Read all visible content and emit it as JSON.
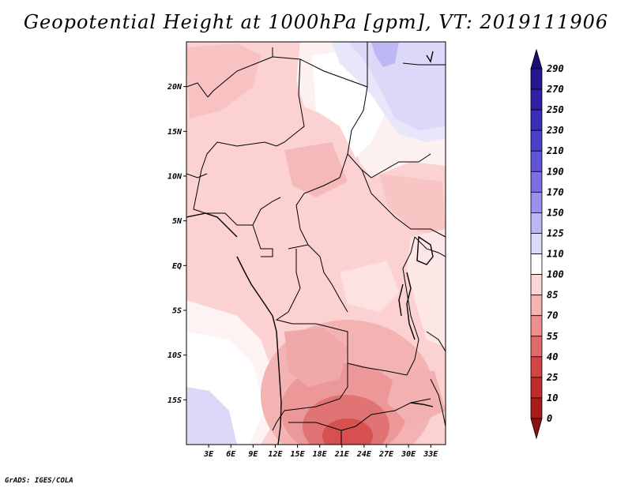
{
  "title": "Geopotential Height at 1000hPa [gpm], VT: 2019111906",
  "credit": "GrADS: IGES/COLA",
  "map": {
    "lat_ticks": [
      "20N",
      "15N",
      "10N",
      "5N",
      "EQ",
      "5S",
      "10S",
      "15S"
    ],
    "lon_ticks": [
      "3E",
      "6E",
      "9E",
      "12E",
      "15E",
      "18E",
      "21E",
      "24E",
      "27E",
      "30E",
      "33E"
    ],
    "lon_range": [
      0,
      35
    ],
    "lat_range": [
      -20,
      25
    ]
  },
  "colorbar": {
    "labels": [
      "290",
      "270",
      "250",
      "230",
      "210",
      "190",
      "170",
      "150",
      "125",
      "110",
      "100",
      "85",
      "70",
      "55",
      "40",
      "25",
      "10",
      "0"
    ],
    "colors": [
      "#1a0f7a",
      "#25178f",
      "#2f20a5",
      "#3a2db8",
      "#4b40c8",
      "#5f55d6",
      "#7a70e0",
      "#9a92ea",
      "#bdb8f3",
      "#dcdaf9",
      "#ffffff",
      "#fcd6d6",
      "#f7b3b3",
      "#ee8f8f",
      "#e06a6a",
      "#d24545",
      "#c02c2c",
      "#a81c1c",
      "#8e1010"
    ]
  }
}
